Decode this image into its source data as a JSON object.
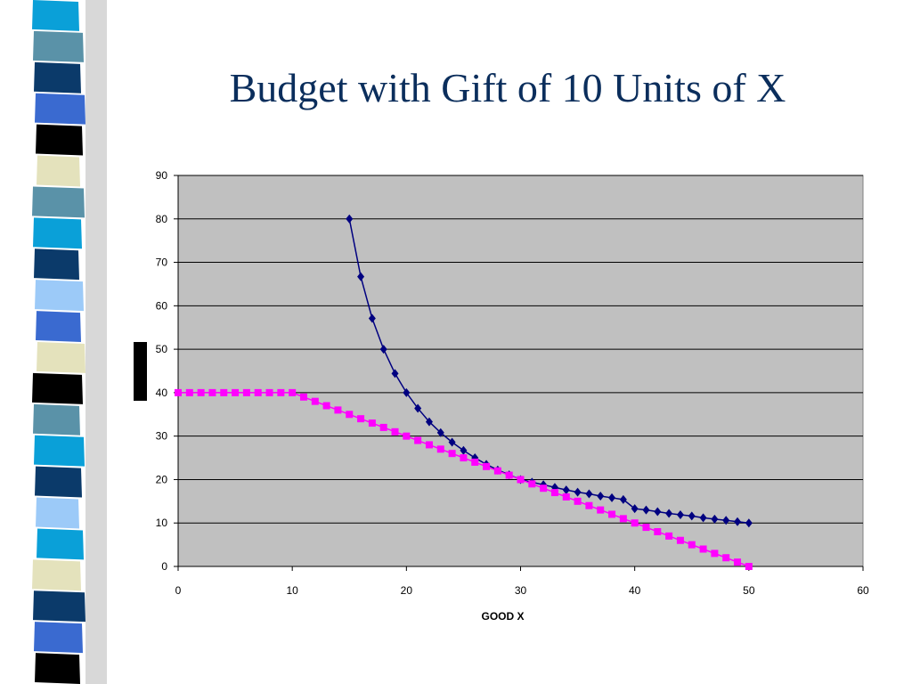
{
  "slide": {
    "title": "Budget with Gift of 10 Units of X",
    "stripe_colors": [
      "#0aa0d8",
      "#5a92a8",
      "#0b3a6a",
      "#3a6ad0",
      "#000000",
      "#e4e2bc",
      "#5a92a8",
      "#0aa0d8",
      "#0b3a6a",
      "#9ccaf8",
      "#3a6ad0",
      "#e4e2bc",
      "#000000",
      "#5a92a8",
      "#0aa0d8",
      "#0b3a6a",
      "#9ccaf8",
      "#0aa0d8",
      "#e4e2bc",
      "#0b3a6a",
      "#3a6ad0",
      "#000000"
    ]
  },
  "chart_data": {
    "type": "line",
    "xlabel": "GOOD X",
    "ylabel": "",
    "xlim": [
      0,
      60
    ],
    "ylim": [
      0,
      90
    ],
    "xticks": [
      0,
      10,
      20,
      30,
      40,
      50,
      60
    ],
    "yticks": [
      0,
      10,
      20,
      30,
      40,
      50,
      60,
      70,
      80,
      90
    ],
    "grid": "horizontal",
    "plot_background": "#c0c0c0",
    "series": [
      {
        "color": "#000080",
        "marker": "diamond",
        "x": [
          15,
          16,
          17,
          18,
          19,
          20,
          21,
          22,
          23,
          24,
          25,
          26,
          27,
          28,
          29,
          30,
          31,
          32,
          33,
          34,
          35,
          36,
          37,
          38,
          39,
          40,
          41,
          42,
          43,
          44,
          45,
          46,
          47,
          48,
          49,
          50
        ],
        "y": [
          80,
          66.7,
          57.1,
          50,
          44.4,
          40,
          36.4,
          33.3,
          30.8,
          28.6,
          26.7,
          25,
          23.5,
          22.2,
          21.1,
          20,
          19.4,
          18.8,
          18.2,
          17.6,
          17.1,
          16.7,
          16.2,
          15.8,
          15.4,
          13.3,
          13,
          12.6,
          12.2,
          11.9,
          11.6,
          11.2,
          10.9,
          10.6,
          10.3,
          10
        ]
      },
      {
        "color": "#ff00ff",
        "marker": "square",
        "x": [
          0,
          1,
          2,
          3,
          4,
          5,
          6,
          7,
          8,
          9,
          10,
          11,
          12,
          13,
          14,
          15,
          16,
          17,
          18,
          19,
          20,
          21,
          22,
          23,
          24,
          25,
          26,
          27,
          28,
          29,
          30,
          31,
          32,
          33,
          34,
          35,
          36,
          37,
          38,
          39,
          40,
          41,
          42,
          43,
          44,
          45,
          46,
          47,
          48,
          49,
          50
        ],
        "y": [
          40,
          40,
          40,
          40,
          40,
          40,
          40,
          40,
          40,
          40,
          40,
          39,
          38,
          37,
          36,
          35,
          34,
          33,
          32,
          31,
          30,
          29,
          28,
          27,
          26,
          25,
          24,
          23,
          22,
          21,
          20,
          19,
          18,
          17,
          16,
          15,
          14,
          13,
          12,
          11,
          10,
          9,
          8,
          7,
          6,
          5,
          4,
          3,
          2,
          1,
          0
        ]
      }
    ]
  }
}
